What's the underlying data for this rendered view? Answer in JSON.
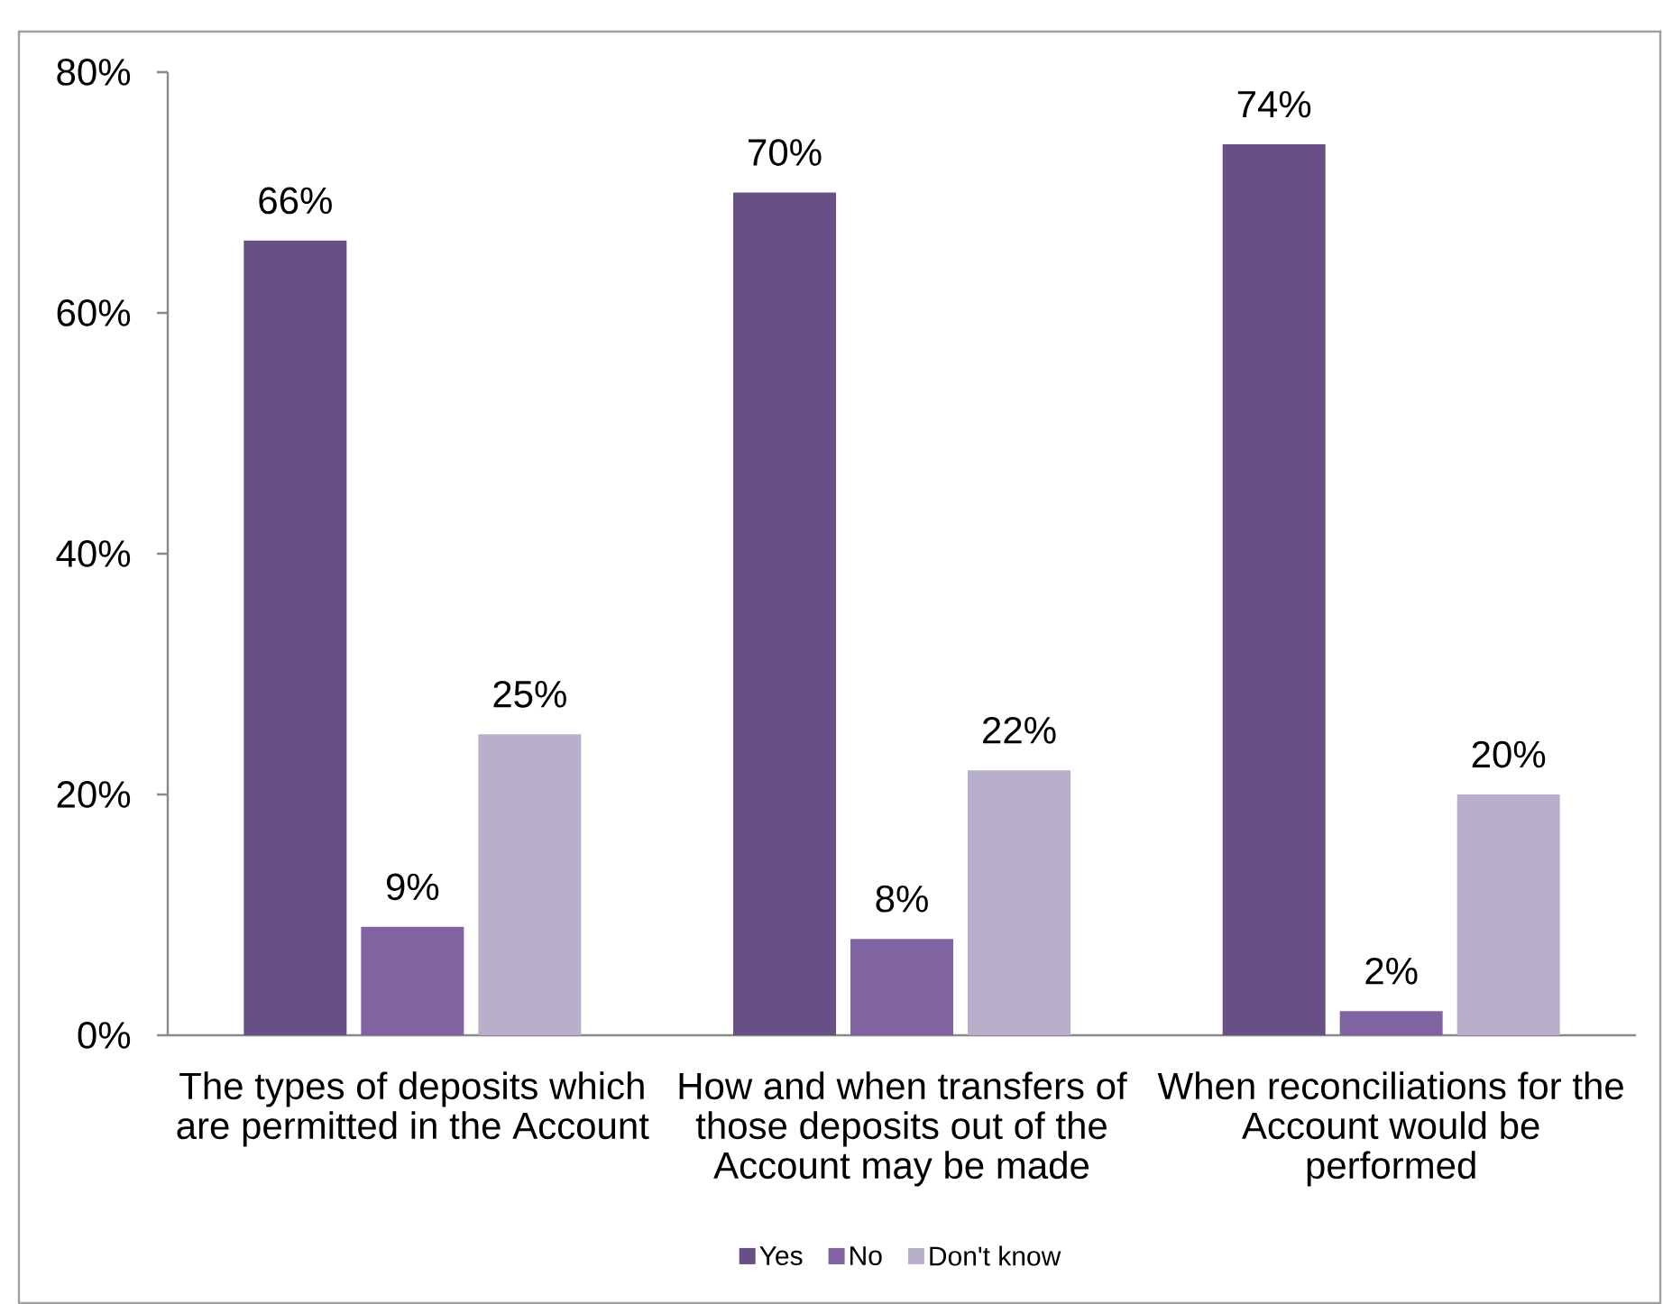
{
  "chart_data": {
    "type": "bar",
    "categories": [
      "The types of deposits which are permitted in the Account",
      "How and when transfers of those deposits out of the Account may be made",
      "When reconciliations for the Account would be performed"
    ],
    "series": [
      {
        "name": "Yes",
        "color": "#684f86",
        "values": [
          66,
          70,
          74
        ],
        "value_labels": [
          "66%",
          "70%",
          "74%"
        ]
      },
      {
        "name": "No",
        "color": "#8064a2",
        "values": [
          9,
          8,
          2
        ],
        "value_labels": [
          "9%",
          "8%",
          "2%"
        ]
      },
      {
        "name": "Don't know",
        "color": "#b8afcb",
        "values": [
          25,
          22,
          20
        ],
        "value_labels": [
          "25%",
          "22%",
          "20%"
        ]
      }
    ],
    "ylim": [
      0,
      80
    ],
    "yticks": [
      {
        "value": 0,
        "label": "0%"
      },
      {
        "value": 20,
        "label": "20%"
      },
      {
        "value": 40,
        "label": "40%"
      },
      {
        "value": 60,
        "label": "60%"
      },
      {
        "value": 80,
        "label": "80%"
      }
    ],
    "legend": "bottom"
  }
}
